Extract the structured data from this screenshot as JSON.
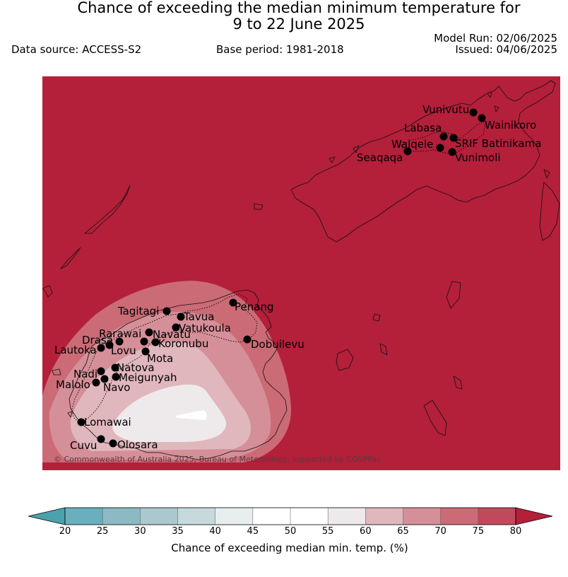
{
  "header": {
    "title_line1": "Chance of exceeding the median minimum temperature for",
    "title_line2": "9 to 22 June 2025",
    "data_source": "Data source: ACCESS-S2",
    "base_period": "Base period: 1981-2018",
    "model_run": "Model Run: 02/06/2025",
    "issued": "Issued: 04/06/2025"
  },
  "map": {
    "background_color": "#b41f3a",
    "places": [
      {
        "name": "Vunivutu"
      },
      {
        "name": "Wainikoro"
      },
      {
        "name": "Labasa"
      },
      {
        "name": "SRIF Batinikama"
      },
      {
        "name": "Waiqele"
      },
      {
        "name": "Seaqaqa"
      },
      {
        "name": "Vunimoli"
      },
      {
        "name": "Tagitagi"
      },
      {
        "name": "Tavua"
      },
      {
        "name": "Penang"
      },
      {
        "name": "Vatukoula"
      },
      {
        "name": "Rarawai"
      },
      {
        "name": "Navatu"
      },
      {
        "name": "Drasa"
      },
      {
        "name": "Koronubu"
      },
      {
        "name": "Lautoka"
      },
      {
        "name": "Lovu"
      },
      {
        "name": "Dobuilevu"
      },
      {
        "name": "Mota"
      },
      {
        "name": "Natova"
      },
      {
        "name": "Nadi"
      },
      {
        "name": "Meigunyah"
      },
      {
        "name": "Malolo"
      },
      {
        "name": "Navo"
      },
      {
        "name": "Lomawai"
      },
      {
        "name": "Cuvu"
      },
      {
        "name": "Olosara"
      }
    ],
    "copyright": "© Commonwealth of Australia 2025, Bureau of Meteorology, supported by COSPPac"
  },
  "colorbar": {
    "ticks": [
      "20",
      "25",
      "30",
      "35",
      "40",
      "45",
      "50",
      "55",
      "60",
      "65",
      "70",
      "75",
      "80"
    ],
    "colors": [
      "#6aafbd",
      "#8bbac4",
      "#a9c9ce",
      "#c6d9dc",
      "#e8eef0",
      "#ffffff",
      "#ffffff",
      "#eeeaeb",
      "#e0b7bd",
      "#d58f98",
      "#cb6b76",
      "#c04a5b"
    ],
    "under_color": "#4aa2ad",
    "over_color": "#b41f3a",
    "label": "Chance of exceeding median min. temp. (%)"
  }
}
